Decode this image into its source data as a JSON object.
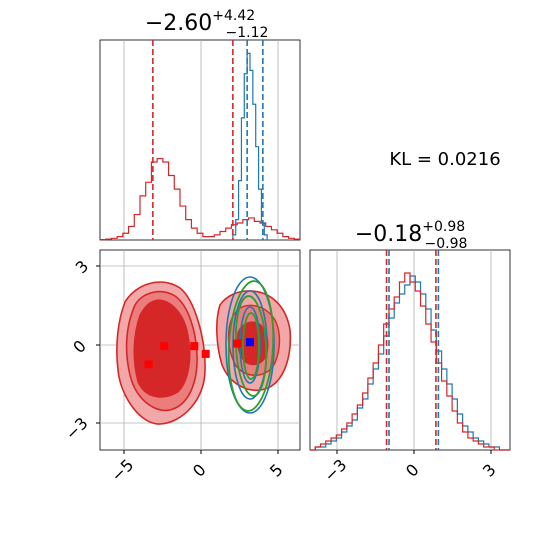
{
  "chart_data": [
    {
      "panel": "top-left",
      "type": "histogram",
      "title_center": "−2.60",
      "title_plus": "+4.42",
      "title_minus": "−1.12",
      "xlim": [
        -7.5,
        6.5
      ],
      "grid": true,
      "series": [
        {
          "color": "#d62728",
          "bins_center": [
            -7.3,
            -6.9,
            -6.5,
            -6.1,
            -5.7,
            -5.3,
            -4.9,
            -4.5,
            -4.1,
            -3.7,
            -3.3,
            -2.9,
            -2.5,
            -2.1,
            -1.7,
            -1.3,
            -0.9,
            -0.5,
            -0.1,
            0.3,
            0.7,
            1.1,
            1.5,
            1.9,
            2.3,
            2.7,
            3.1,
            3.5,
            3.9,
            4.3,
            4.7,
            5.1,
            5.5,
            5.9,
            6.3
          ],
          "heights": [
            0.2,
            0.5,
            1,
            2,
            4,
            8,
            15,
            26,
            34,
            46,
            48,
            46,
            38,
            30,
            20,
            12,
            7,
            4,
            2,
            2,
            3,
            5,
            7,
            9,
            10,
            12,
            13,
            11,
            10,
            8,
            6,
            4,
            2,
            1,
            0.5
          ]
        },
        {
          "color": "#1f77b4",
          "bins_center": [
            1.9,
            2.1,
            2.3,
            2.5,
            2.7,
            2.9,
            3.1,
            3.3,
            3.5,
            3.7,
            3.9,
            4.1
          ],
          "heights": [
            3,
            12,
            35,
            72,
            98,
            110,
            100,
            80,
            55,
            30,
            10,
            3
          ]
        }
      ],
      "quantile_lines": {
        "red": [
          -3.8,
          1.8
        ],
        "blue": [
          2.8,
          3.9
        ]
      }
    },
    {
      "panel": "bottom-left",
      "type": "contour",
      "xlim": [
        -7.5,
        6.5
      ],
      "ylim": [
        -4.2,
        3.5
      ],
      "xticks": [
        "−5",
        "0",
        "5"
      ],
      "yticks": [
        "3",
        "0",
        "−3"
      ],
      "red_points": [
        [
          -4.1,
          -0.9
        ],
        [
          -3.0,
          -0.2
        ],
        [
          -0.9,
          -0.2
        ],
        [
          -0.1,
          -0.5
        ],
        [
          2.1,
          -0.1
        ]
      ],
      "blue_point": [
        3.0,
        -0.05
      ]
    },
    {
      "panel": "bottom-right",
      "type": "histogram",
      "title_center": "−0.18",
      "title_plus": "+0.98",
      "title_minus": "−0.98",
      "xlim": [
        -4.3,
        3.8
      ],
      "xticks": [
        "−3",
        "0",
        "3"
      ],
      "grid": true,
      "series": [
        {
          "color": "#1f77b4",
          "heights": [
            0,
            1,
            1,
            2,
            3,
            4,
            6,
            8,
            10,
            14,
            17,
            22,
            27,
            32,
            38,
            44,
            49,
            52,
            55,
            58,
            56,
            52,
            47,
            40,
            33,
            27,
            22,
            17,
            12,
            8,
            6,
            4,
            3,
            2,
            1,
            1,
            0,
            0
          ]
        },
        {
          "color": "#d62728",
          "heights": [
            0,
            1,
            2,
            3,
            4,
            5,
            7,
            9,
            12,
            15,
            19,
            24,
            29,
            35,
            42,
            47,
            51,
            56,
            59,
            56,
            53,
            48,
            42,
            36,
            29,
            23,
            18,
            13,
            9,
            6,
            4,
            3,
            2,
            1,
            1,
            0,
            0,
            0
          ]
        }
      ],
      "quantile_lines": {
        "red": [
          -1.2,
          0.8
        ],
        "blue": [
          -1.1,
          0.9
        ]
      }
    }
  ],
  "annotation": "KL = 0.0216"
}
